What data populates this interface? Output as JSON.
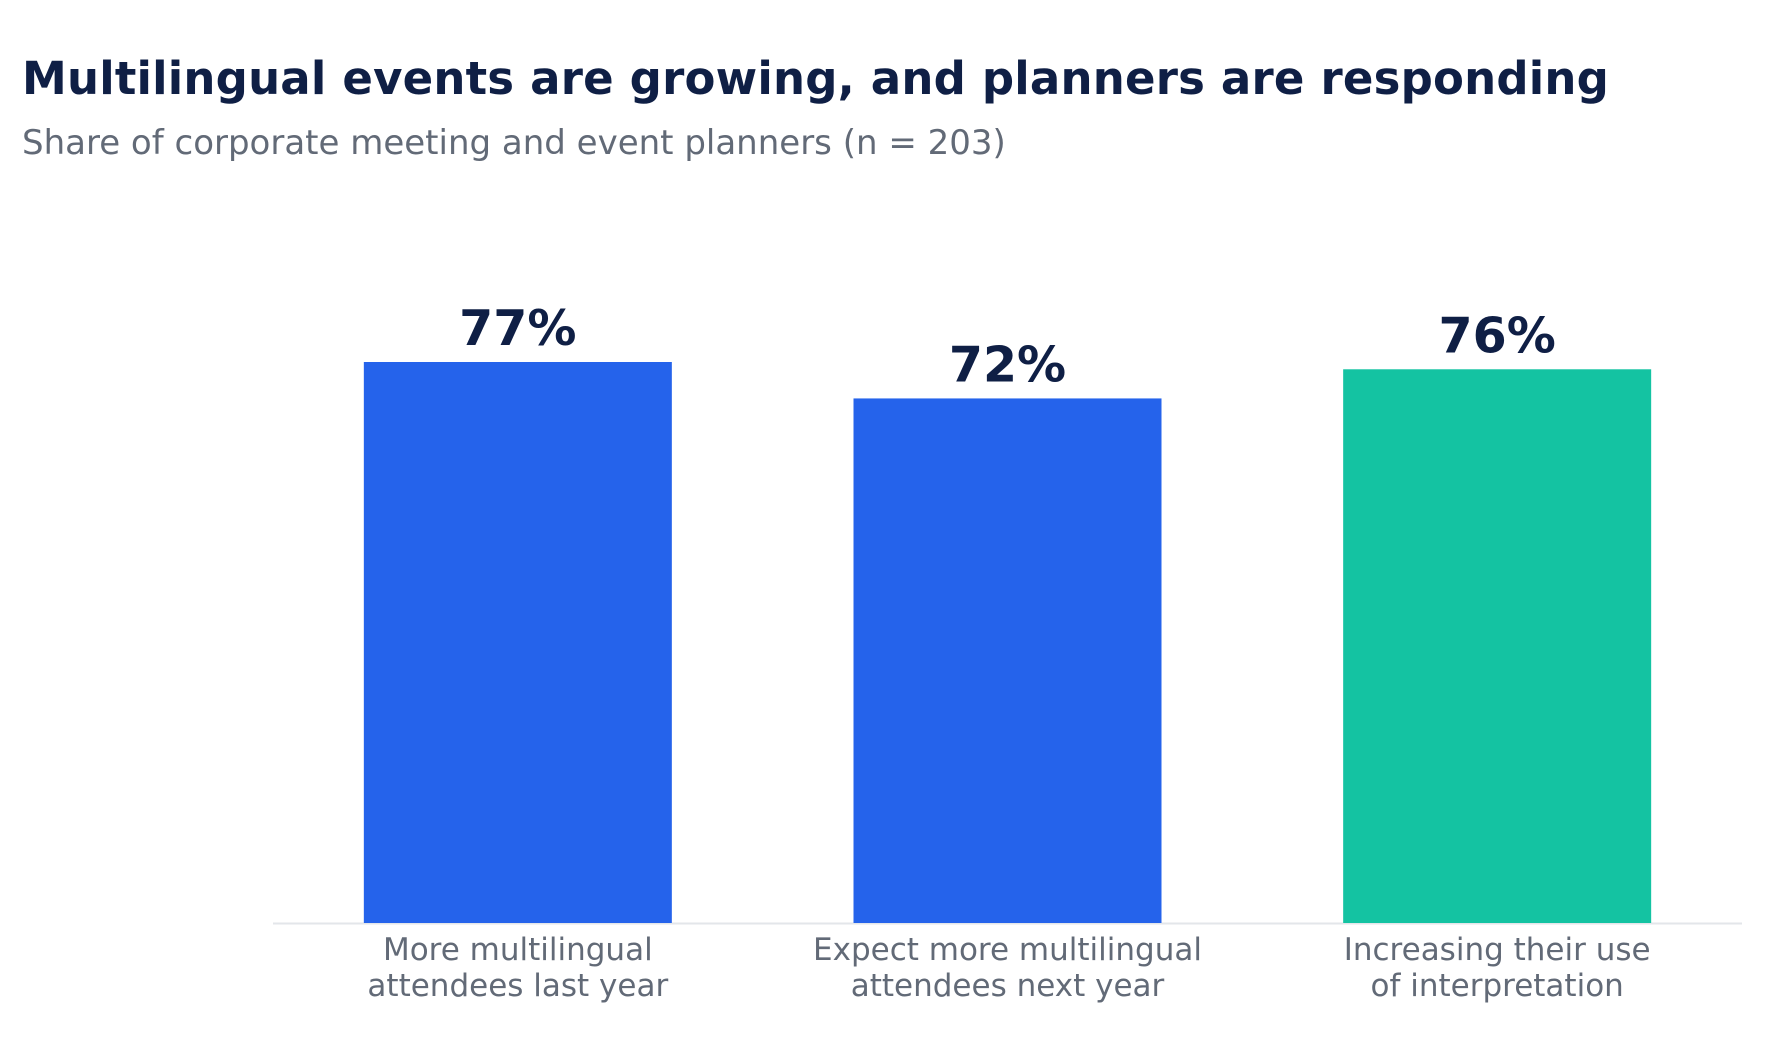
{
  "title": "Multilingual events are growing, and planners are responding",
  "subtitle": "Share of corporate meeting and event planners (n = 203)",
  "chart_data": {
    "type": "bar",
    "title": "Multilingual events are growing, and planners are responding",
    "subtitle": "Share of corporate meeting and event planners (n = 203)",
    "categories": [
      [
        "More multilingual",
        "attendees last year"
      ],
      [
        "Expect more multilingual",
        "attendees next year"
      ],
      [
        "Increasing their use",
        "of interpretation"
      ]
    ],
    "values": [
      77,
      72,
      76
    ],
    "value_labels": [
      "77%",
      "72%",
      "76%"
    ],
    "colors": [
      "#2563eb",
      "#2563eb",
      "#14c3a2"
    ],
    "ylim": [
      0,
      100
    ],
    "grid": false,
    "xlabel": "",
    "ylabel": ""
  }
}
